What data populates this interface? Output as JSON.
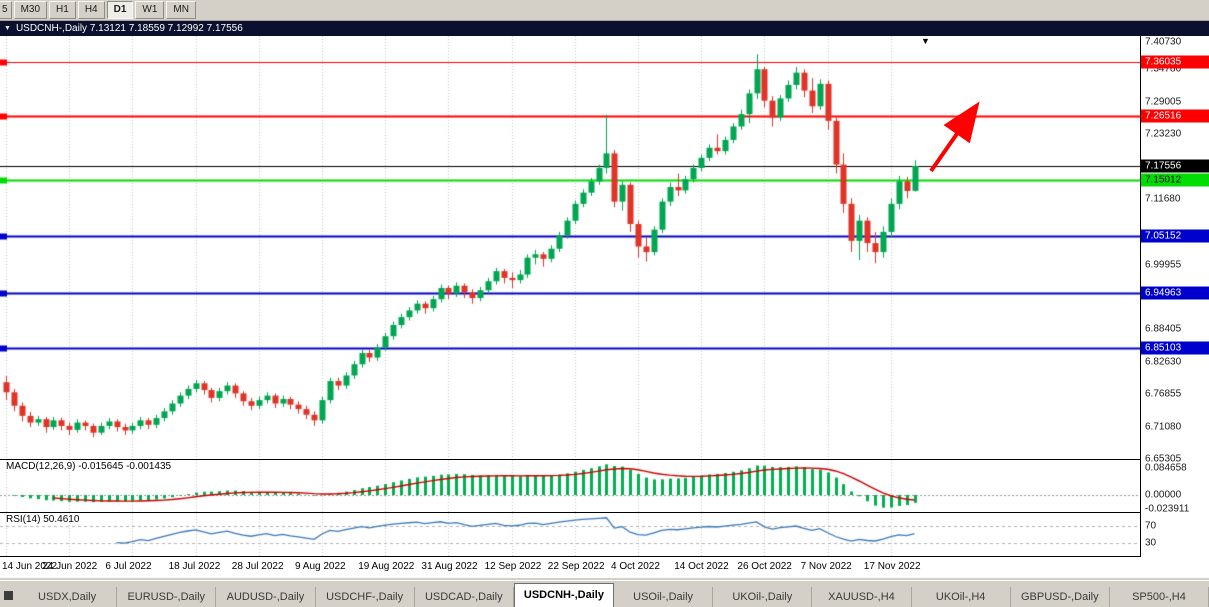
{
  "window_title": "USDCNH-,Daily  7.13121 7.18559 7.12992 7.17556",
  "icons": {
    "window_menu": "▼",
    "current_bar_marker": "▼"
  },
  "toolbar": {
    "timeframes": [
      {
        "label": "5",
        "active": false,
        "partial": true
      },
      {
        "label": "M30",
        "active": false
      },
      {
        "label": "H1",
        "active": false
      },
      {
        "label": "H4",
        "active": false
      },
      {
        "label": "D1",
        "active": true
      },
      {
        "label": "W1",
        "active": false
      },
      {
        "label": "MN",
        "active": false
      }
    ]
  },
  "colors": {
    "candle_up": "#00a651",
    "candle_down": "#e03428",
    "resistance_red": "#ff0000",
    "support_green": "#00dd00",
    "support_blue": "#0000cc",
    "current_price_black": "#000000",
    "macd_histogram": "#00b050",
    "macd_signal": "#cc0000",
    "rsi_line": "#3a78b8",
    "grid": "#c9c9c9",
    "arrow": "#ff0000"
  },
  "chart_data": {
    "type": "candlestick",
    "symbol": "USDCNH-",
    "timeframe": "Daily",
    "ohlc_current": {
      "open": "7.13121",
      "high": "7.18559",
      "low": "7.12992",
      "close": "7.17556"
    },
    "current_price": 7.17556,
    "y_axis": {
      "min": 6.65305,
      "max": 7.4073,
      "labels": [
        "7.40730",
        "7.34780",
        "7.29005",
        "7.23230",
        "7.11680",
        "6.99955",
        "6.88405",
        "6.82630",
        "6.76855",
        "6.71080",
        "6.65305"
      ]
    },
    "x_labels": [
      {
        "bar": 0,
        "label": "14 Jun 2022"
      },
      {
        "bar": 8,
        "label": "24 Jun 2022"
      },
      {
        "bar": 16,
        "label": "6 Jul 2022"
      },
      {
        "bar": 24,
        "label": "18 Jul 2022"
      },
      {
        "bar": 32,
        "label": "28 Jul 2022"
      },
      {
        "bar": 40,
        "label": "9 Aug 2022"
      },
      {
        "bar": 48,
        "label": "19 Aug 2022"
      },
      {
        "bar": 56,
        "label": "31 Aug 2022"
      },
      {
        "bar": 64,
        "label": "12 Sep 2022"
      },
      {
        "bar": 72,
        "label": "22 Sep 2022"
      },
      {
        "bar": 80,
        "label": "4 Oct 2022"
      },
      {
        "bar": 88,
        "label": "14 Oct 2022"
      },
      {
        "bar": 96,
        "label": "26 Oct 2022"
      },
      {
        "bar": 104,
        "label": "7 Nov 2022"
      },
      {
        "bar": 112,
        "label": "17 Nov 2022"
      }
    ],
    "hlines": [
      {
        "price": 7.36035,
        "color": "#ff0000",
        "width": 1,
        "marker": true,
        "role": "resistance"
      },
      {
        "price": 7.26516,
        "color": "#ff0000",
        "width": 2,
        "marker": true,
        "role": "resistance"
      },
      {
        "price": 7.17556,
        "color": "#000000",
        "width": 1,
        "marker": false,
        "role": "current-price"
      },
      {
        "price": 7.15012,
        "color": "#00dd00",
        "width": 2,
        "marker": true,
        "role": "support"
      },
      {
        "price": 7.05152,
        "color": "#0000cc",
        "width": 2,
        "marker": true,
        "role": "support"
      },
      {
        "price": 6.94963,
        "color": "#0000cc",
        "width": 2,
        "marker": true,
        "role": "support"
      },
      {
        "price": 6.85103,
        "color": "#0000cc",
        "width": 2,
        "marker": true,
        "role": "support"
      }
    ],
    "price_tags": [
      {
        "text": "7.36035",
        "bg": "#ff0000",
        "fg": "#ffffff"
      },
      {
        "text": "7.26516",
        "bg": "#ff0000",
        "fg": "#ffffff"
      },
      {
        "text": "7.17556",
        "bg": "#000000",
        "fg": "#ffffff"
      },
      {
        "text": "7.15012",
        "bg": "#00dd00",
        "fg": "#000000"
      },
      {
        "text": "7.05152",
        "bg": "#0000cc",
        "fg": "#ffffff"
      },
      {
        "text": "6.94963",
        "bg": "#0000cc",
        "fg": "#ffffff"
      },
      {
        "text": "6.85103",
        "bg": "#0000cc",
        "fg": "#ffffff"
      }
    ],
    "candles": [
      [
        6.79,
        6.801,
        6.758,
        6.772
      ],
      [
        6.772,
        6.778,
        6.738,
        6.748
      ],
      [
        6.748,
        6.754,
        6.72,
        6.73
      ],
      [
        6.73,
        6.737,
        6.71,
        6.718
      ],
      [
        6.718,
        6.73,
        6.712,
        6.724
      ],
      [
        6.724,
        6.728,
        6.7,
        6.71
      ],
      [
        6.71,
        6.728,
        6.705,
        6.722
      ],
      [
        6.722,
        6.727,
        6.704,
        6.712
      ],
      [
        6.712,
        6.718,
        6.696,
        6.705
      ],
      [
        6.705,
        6.724,
        6.7,
        6.718
      ],
      [
        6.718,
        6.722,
        6.704,
        6.712
      ],
      [
        6.712,
        6.716,
        6.692,
        6.7
      ],
      [
        6.7,
        6.718,
        6.696,
        6.712
      ],
      [
        6.712,
        6.726,
        6.706,
        6.72
      ],
      [
        6.72,
        6.724,
        6.702,
        6.71
      ],
      [
        6.71,
        6.716,
        6.696,
        6.704
      ],
      [
        6.704,
        6.718,
        6.698,
        6.712
      ],
      [
        6.712,
        6.728,
        6.706,
        6.722
      ],
      [
        6.722,
        6.726,
        6.706,
        6.714
      ],
      [
        6.714,
        6.732,
        6.708,
        6.726
      ],
      [
        6.726,
        6.744,
        6.72,
        6.738
      ],
      [
        6.738,
        6.758,
        6.732,
        6.752
      ],
      [
        6.752,
        6.772,
        6.746,
        6.766
      ],
      [
        6.766,
        6.784,
        6.76,
        6.778
      ],
      [
        6.778,
        6.794,
        6.772,
        6.788
      ],
      [
        6.788,
        6.792,
        6.768,
        6.776
      ],
      [
        6.776,
        6.78,
        6.754,
        6.762
      ],
      [
        6.762,
        6.78,
        6.756,
        6.774
      ],
      [
        6.774,
        6.79,
        6.768,
        6.784
      ],
      [
        6.784,
        6.788,
        6.762,
        6.77
      ],
      [
        6.77,
        6.774,
        6.748,
        6.756
      ],
      [
        6.756,
        6.762,
        6.74,
        6.748
      ],
      [
        6.748,
        6.764,
        6.742,
        6.758
      ],
      [
        6.758,
        6.772,
        6.752,
        6.766
      ],
      [
        6.766,
        6.77,
        6.744,
        6.752
      ],
      [
        6.752,
        6.766,
        6.746,
        6.76
      ],
      [
        6.76,
        6.764,
        6.742,
        6.75
      ],
      [
        6.75,
        6.756,
        6.734,
        6.742
      ],
      [
        6.742,
        6.748,
        6.724,
        6.732
      ],
      [
        6.732,
        6.738,
        6.712,
        6.722
      ],
      [
        6.722,
        6.764,
        6.716,
        6.758
      ],
      [
        6.758,
        6.798,
        6.752,
        6.792
      ],
      [
        6.792,
        6.798,
        6.776,
        6.784
      ],
      [
        6.784,
        6.808,
        6.778,
        6.802
      ],
      [
        6.802,
        6.828,
        6.796,
        6.822
      ],
      [
        6.822,
        6.848,
        6.816,
        6.842
      ],
      [
        6.842,
        6.848,
        6.826,
        6.834
      ],
      [
        6.834,
        6.858,
        6.828,
        6.852
      ],
      [
        6.852,
        6.878,
        6.846,
        6.872
      ],
      [
        6.872,
        6.898,
        6.866,
        6.892
      ],
      [
        6.892,
        6.912,
        6.886,
        6.906
      ],
      [
        6.906,
        6.924,
        6.9,
        6.918
      ],
      [
        6.918,
        6.936,
        6.912,
        6.93
      ],
      [
        6.93,
        6.934,
        6.912,
        6.922
      ],
      [
        6.922,
        6.944,
        6.916,
        6.938
      ],
      [
        6.938,
        6.964,
        6.932,
        6.958
      ],
      [
        6.958,
        6.962,
        6.938,
        6.948
      ],
      [
        6.948,
        6.968,
        6.942,
        6.962
      ],
      [
        6.962,
        6.966,
        6.94,
        6.95
      ],
      [
        6.95,
        6.956,
        6.93,
        6.94
      ],
      [
        6.94,
        6.96,
        6.934,
        6.954
      ],
      [
        6.954,
        6.976,
        6.948,
        6.97
      ],
      [
        6.97,
        6.994,
        6.964,
        6.988
      ],
      [
        6.988,
        6.992,
        6.966,
        6.976
      ],
      [
        6.976,
        6.986,
        6.958,
        6.972
      ],
      [
        6.972,
        6.99,
        6.966,
        6.982
      ],
      [
        6.982,
        7.018,
        6.976,
        7.012
      ],
      [
        7.012,
        7.026,
        7.0,
        7.018
      ],
      [
        7.018,
        7.022,
        6.996,
        7.01
      ],
      [
        7.01,
        7.034,
        7.004,
        7.028
      ],
      [
        7.028,
        7.058,
        7.022,
        7.052
      ],
      [
        7.052,
        7.084,
        7.046,
        7.078
      ],
      [
        7.078,
        7.114,
        7.072,
        7.108
      ],
      [
        7.108,
        7.134,
        7.102,
        7.128
      ],
      [
        7.128,
        7.154,
        7.122,
        7.148
      ],
      [
        7.148,
        7.178,
        7.142,
        7.172
      ],
      [
        7.172,
        7.267,
        7.162,
        7.198
      ],
      [
        7.198,
        7.204,
        7.102,
        7.112
      ],
      [
        7.112,
        7.148,
        7.096,
        7.142
      ],
      [
        7.142,
        7.146,
        7.058,
        7.072
      ],
      [
        7.072,
        7.078,
        7.012,
        7.032
      ],
      [
        7.032,
        7.048,
        7.005,
        7.022
      ],
      [
        7.022,
        7.068,
        7.016,
        7.062
      ],
      [
        7.062,
        7.118,
        7.056,
        7.112
      ],
      [
        7.112,
        7.146,
        7.104,
        7.138
      ],
      [
        7.138,
        7.162,
        7.122,
        7.132
      ],
      [
        7.132,
        7.158,
        7.126,
        7.152
      ],
      [
        7.152,
        7.178,
        7.146,
        7.172
      ],
      [
        7.172,
        7.196,
        7.166,
        7.19
      ],
      [
        7.19,
        7.214,
        7.184,
        7.208
      ],
      [
        7.208,
        7.232,
        7.196,
        7.202
      ],
      [
        7.202,
        7.228,
        7.196,
        7.222
      ],
      [
        7.222,
        7.252,
        7.216,
        7.246
      ],
      [
        7.246,
        7.276,
        7.24,
        7.268
      ],
      [
        7.268,
        7.312,
        7.252,
        7.305
      ],
      [
        7.305,
        7.375,
        7.295,
        7.348
      ],
      [
        7.348,
        7.352,
        7.28,
        7.292
      ],
      [
        7.292,
        7.3,
        7.246,
        7.262
      ],
      [
        7.262,
        7.302,
        7.256,
        7.296
      ],
      [
        7.296,
        7.328,
        7.29,
        7.32
      ],
      [
        7.32,
        7.352,
        7.312,
        7.342
      ],
      [
        7.342,
        7.348,
        7.298,
        7.31
      ],
      [
        7.31,
        7.332,
        7.27,
        7.282
      ],
      [
        7.282,
        7.33,
        7.276,
        7.322
      ],
      [
        7.322,
        7.328,
        7.24,
        7.256
      ],
      [
        7.256,
        7.262,
        7.162,
        7.178
      ],
      [
        7.178,
        7.198,
        7.092,
        7.108
      ],
      [
        7.108,
        7.118,
        7.022,
        7.042
      ],
      [
        7.042,
        7.088,
        7.008,
        7.078
      ],
      [
        7.078,
        7.084,
        7.022,
        7.038
      ],
      [
        7.038,
        7.058,
        7.002,
        7.022
      ],
      [
        7.022,
        7.068,
        7.012,
        7.058
      ],
      [
        7.058,
        7.118,
        7.048,
        7.108
      ],
      [
        7.108,
        7.158,
        7.098,
        7.148
      ],
      [
        7.148,
        7.156,
        7.118,
        7.131
      ],
      [
        7.13121,
        7.18559,
        7.12992,
        7.17556
      ]
    ]
  },
  "indicators": {
    "macd": {
      "title": "MACD(12,26,9) -0.015645 -0.001435",
      "params": [
        12,
        26,
        9
      ],
      "current_macd": -0.015645,
      "current_signal": -0.001435,
      "axis_max_label": "0.084658",
      "axis_zero_label": "0.00000",
      "axis_min_label": "-0.023911"
    },
    "rsi": {
      "title": "RSI(14) 50.4610",
      "period": 14,
      "current": 50.461,
      "levels": [
        "70",
        "30"
      ]
    }
  },
  "annotation": {
    "type": "arrow",
    "direction": "up-right",
    "color": "#ff0000",
    "note": "bullish arrow near current price pointing toward resistance"
  },
  "tabs": {
    "selected_index": 5,
    "items": [
      "USDX,Daily",
      "EURUSD-,Daily",
      "AUDUSD-,Daily",
      "USDCHF-,Daily",
      "USDCAD-,Daily",
      "USDCNH-,Daily",
      "USOil-,Daily",
      "UKOil-,Daily",
      "XAUUSD-,H4",
      "UKOil-,H4",
      "GBPUSD-,Daily",
      "SP500-,H4"
    ]
  }
}
